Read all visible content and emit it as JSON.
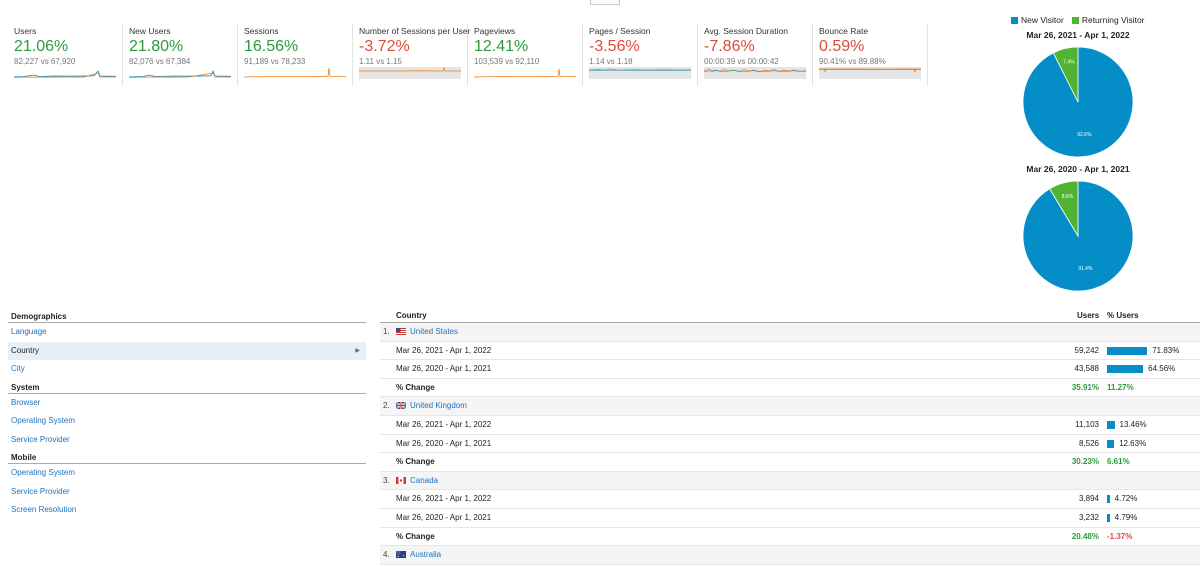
{
  "metrics": [
    {
      "label": "Users",
      "value": "21.06%",
      "trend": "up",
      "compare": "82,227 vs 67,920",
      "spark_shaded": false
    },
    {
      "label": "New Users",
      "value": "21.80%",
      "trend": "up",
      "compare": "82,076 vs 67,384",
      "spark_shaded": false
    },
    {
      "label": "Sessions",
      "value": "16.56%",
      "trend": "up",
      "compare": "91,189 vs 78,233",
      "spark_shaded": false
    },
    {
      "label": "Number of Sessions per User",
      "value": "-3.72%",
      "trend": "down",
      "compare": "1.11 vs 1.15",
      "spark_shaded": true
    },
    {
      "label": "Pageviews",
      "value": "12.41%",
      "trend": "up",
      "compare": "103,539 vs 92,110",
      "spark_shaded": false
    },
    {
      "label": "Pages / Session",
      "value": "-3.56%",
      "trend": "down",
      "compare": "1.14 vs 1.18",
      "spark_shaded": true
    },
    {
      "label": "Avg. Session Duration",
      "value": "-7.86%",
      "trend": "down",
      "compare": "00:00:39 vs 00:00:42",
      "spark_shaded": true
    },
    {
      "label": "Bounce Rate",
      "value": "0.59%",
      "trend": "down",
      "compare": "90.41% vs 89.88%",
      "spark_shaded": true
    }
  ],
  "legend": {
    "new_visitor": "New Visitor",
    "returning_visitor": "Returning Visitor"
  },
  "colors": {
    "new_visitor": "#058dc7",
    "returning_visitor": "#50b432",
    "positive": "#2a9b3c",
    "negative": "#dd4b39",
    "link": "#1a73c0"
  },
  "chart_data": [
    {
      "type": "pie",
      "title": "Mar 26, 2021 - Apr 1, 2022",
      "categories": [
        "New Visitor",
        "Returning Visitor"
      ],
      "values": [
        92.6,
        7.4
      ],
      "labels": [
        "92.6%",
        "7.4%"
      ]
    },
    {
      "type": "pie",
      "title": "Mar 26, 2020 - Apr 1, 2021",
      "categories": [
        "New Visitor",
        "Returning Visitor"
      ],
      "values": [
        91.4,
        8.6
      ],
      "labels": [
        "91.4%",
        "8.6%"
      ]
    }
  ],
  "sidebar": {
    "sections": [
      {
        "heading": "Demographics",
        "items": [
          "Language",
          "Country",
          "City"
        ]
      },
      {
        "heading": "System",
        "items": [
          "Browser",
          "Operating System",
          "Service Provider"
        ]
      },
      {
        "heading": "Mobile",
        "items": [
          "Operating System",
          "Service Provider",
          "Screen Resolution"
        ]
      }
    ],
    "active": "Country"
  },
  "table": {
    "col_country": "Country",
    "col_users": "Users",
    "col_pct_users": "% Users",
    "period_current": "Mar 26, 2021 - Apr 1, 2022",
    "period_previous": "Mar 26, 2020 - Apr 1, 2021",
    "change_label": "% Change",
    "rows": [
      {
        "index": "1.",
        "country": "United States",
        "flag": "us",
        "current": {
          "users": "59,242",
          "pct": "71.83%",
          "share": 0.7183
        },
        "previous": {
          "users": "43,588",
          "pct": "64.56%",
          "share": 0.6456
        },
        "change_users": "35.91%",
        "change_pct": "11.27%",
        "change_pct_sign": "pos"
      },
      {
        "index": "2.",
        "country": "United Kingdom",
        "flag": "gb",
        "current": {
          "users": "11,103",
          "pct": "13.46%",
          "share": 0.1346
        },
        "previous": {
          "users": "8,526",
          "pct": "12.63%",
          "share": 0.1263
        },
        "change_users": "30.23%",
        "change_pct": "6.61%",
        "change_pct_sign": "pos"
      },
      {
        "index": "3.",
        "country": "Canada",
        "flag": "ca",
        "current": {
          "users": "3,894",
          "pct": "4.72%",
          "share": 0.0472
        },
        "previous": {
          "users": "3,232",
          "pct": "4.79%",
          "share": 0.0479
        },
        "change_users": "20.48%",
        "change_pct": "-1.37%",
        "change_pct_sign": "neg"
      },
      {
        "index": "4.",
        "country": "Australia",
        "flag": "au"
      }
    ]
  }
}
